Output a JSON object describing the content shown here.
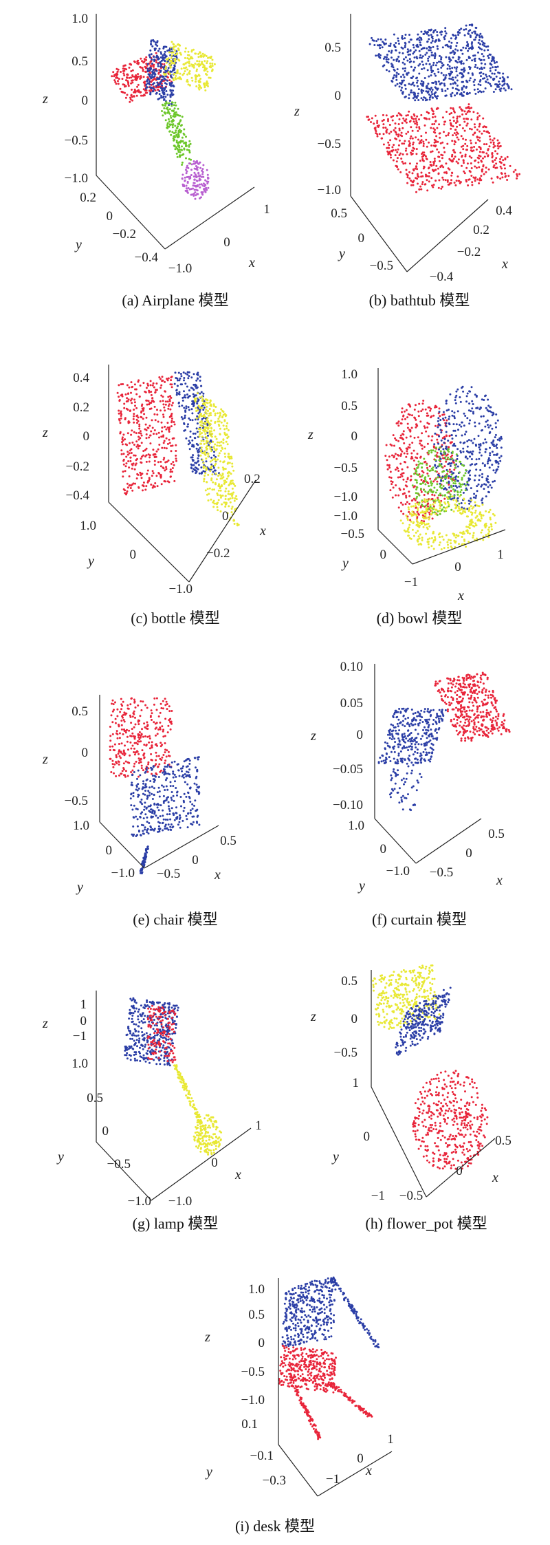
{
  "figure": {
    "background": "#ffffff"
  },
  "colors": {
    "red": "#e8253a",
    "blue": "#2b3ea6",
    "green": "#6cc62a",
    "yellow": "#e8e834",
    "purple": "#b85fd0"
  },
  "chart_data": [
    {
      "type": "scatter",
      "caption": "(a) Airplane 模型",
      "zlabel": "z",
      "ylabel": "y",
      "xlabel": "x",
      "zticks": [
        "1.0",
        "0.5",
        "0",
        "−0.5",
        "−1.0"
      ],
      "yticks": [
        "0.2",
        "0",
        "−0.2",
        "−0.4"
      ],
      "xticks": [
        "−1.0",
        "0",
        "1"
      ],
      "segments": [
        "red",
        "blue",
        "yellow",
        "green",
        "purple"
      ]
    },
    {
      "type": "scatter",
      "caption": "(b) bathtub 模型",
      "zlabel": "z",
      "ylabel": "y",
      "xlabel": "x",
      "zticks": [
        "0.5",
        "0",
        "−0.5",
        "−1.0"
      ],
      "yticks": [
        "0.5",
        "0",
        "−0.5"
      ],
      "xticks": [
        "−0.4",
        "−0.2",
        "0.2",
        "0.4"
      ],
      "segments": [
        "blue",
        "red"
      ]
    },
    {
      "type": "scatter",
      "caption": "(c) bottle 模型",
      "zlabel": "z",
      "ylabel": "y",
      "xlabel": "x",
      "zticks": [
        "0.4",
        "0.2",
        "0",
        "−0.2",
        "−0.4"
      ],
      "yticks": [
        "1.0",
        "0",
        "−1.0"
      ],
      "xticks": [
        "0.2",
        "0",
        "−0.2"
      ],
      "segments": [
        "red",
        "blue",
        "yellow"
      ]
    },
    {
      "type": "scatter",
      "caption": "(d) bowl 模型",
      "zlabel": "z",
      "ylabel": "y",
      "xlabel": "x",
      "zticks": [
        "1.0",
        "0.5",
        "0",
        "−0.5",
        "−1.0"
      ],
      "yticks": [
        "−1.0",
        "−0.5",
        "0"
      ],
      "xticks": [
        "−1",
        "0",
        "1"
      ],
      "segments": [
        "red",
        "blue",
        "green",
        "yellow"
      ]
    },
    {
      "type": "scatter",
      "caption": "(e) chair 模型",
      "zlabel": "z",
      "ylabel": "y",
      "xlabel": "x",
      "zticks": [
        "0.5",
        "0",
        "−0.5"
      ],
      "yticks": [
        "1.0",
        "0",
        "−1.0"
      ],
      "xticks": [
        "−0.5",
        "0",
        "0.5"
      ],
      "segments": [
        "red",
        "blue"
      ]
    },
    {
      "type": "scatter",
      "caption": "(f) curtain 模型",
      "zlabel": "z",
      "ylabel": "y",
      "xlabel": "x",
      "zticks": [
        "0.10",
        "0.05",
        "0",
        "−0.05",
        "−0.10"
      ],
      "yticks": [
        "1.0",
        "0",
        "−1.0"
      ],
      "xticks": [
        "−0.5",
        "0",
        "0.5"
      ],
      "segments": [
        "red",
        "blue"
      ]
    },
    {
      "type": "scatter",
      "caption": "(g) lamp 模型",
      "zlabel": "z",
      "ylabel": "y",
      "xlabel": "x",
      "zticks": [
        "1",
        "0",
        "−1"
      ],
      "yticks": [
        "1.0",
        "0.5",
        "0",
        "−0.5",
        "−1.0"
      ],
      "xticks": [
        "−1.0",
        "0",
        "1"
      ],
      "segments": [
        "blue",
        "red",
        "yellow"
      ]
    },
    {
      "type": "scatter",
      "caption": "(h) flower_pot 模型",
      "zlabel": "z",
      "ylabel": "y",
      "xlabel": "x",
      "zticks": [
        "0.5",
        "0",
        "−0.5"
      ],
      "yticks": [
        "1",
        "0",
        "−1"
      ],
      "xticks": [
        "−0.5",
        "0",
        "0.5"
      ],
      "segments": [
        "yellow",
        "blue",
        "red"
      ]
    },
    {
      "type": "scatter",
      "caption": "(i) desk 模型",
      "zlabel": "z",
      "ylabel": "y",
      "xlabel": "x",
      "zticks": [
        "1.0",
        "0.5",
        "0",
        "−0.5",
        "−1.0"
      ],
      "yticks": [
        "0.1",
        "−0.1",
        "−0.3"
      ],
      "xticks": [
        "−1",
        "0",
        "1"
      ],
      "segments": [
        "blue",
        "red"
      ]
    }
  ]
}
